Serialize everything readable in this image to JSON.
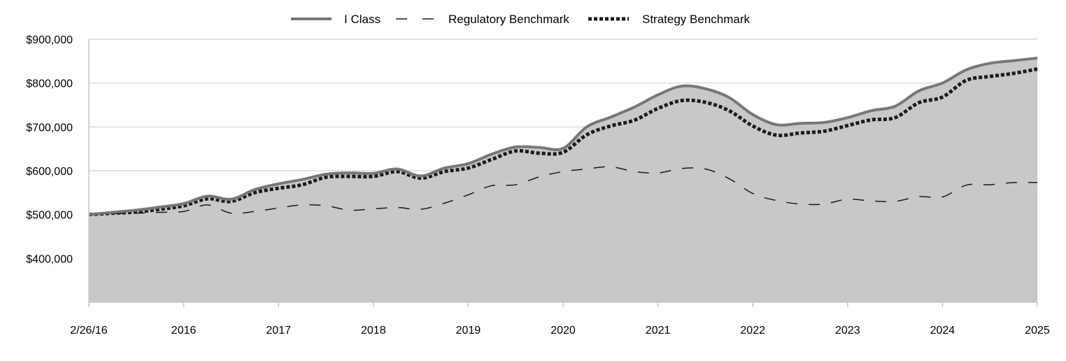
{
  "chart_data": {
    "type": "area",
    "x": [
      "2/26/16",
      "",
      "",
      "",
      "2016",
      "",
      "",
      "",
      "2017",
      "",
      "",
      "",
      "2018",
      "",
      "",
      "",
      "2019",
      "",
      "",
      "",
      "2020",
      "",
      "",
      "",
      "2021",
      "",
      "",
      "",
      "2022",
      "",
      "",
      "",
      "2023",
      "",
      "",
      "",
      "2024",
      "",
      "",
      "",
      "2025"
    ],
    "xticks": [
      "2/26/16",
      "2016",
      "2017",
      "2018",
      "2019",
      "2020",
      "2021",
      "2022",
      "2023",
      "2024",
      "2025"
    ],
    "ylim": [
      300000,
      900000
    ],
    "yticks": [
      400000,
      500000,
      600000,
      700000,
      800000,
      900000
    ],
    "ytick_labels": [
      "$400,000",
      "$500,000",
      "$600,000",
      "$700,000",
      "$800,000",
      "$900,000"
    ],
    "grid": "horizontal",
    "legend_placement": "top-center",
    "legend": {
      "i_class": "I Class",
      "regulatory": "Regulatory Benchmark",
      "strategy": "Strategy Benchmark"
    },
    "series": [
      {
        "name": "I Class",
        "style": "solid-area",
        "color": "#777777",
        "fill": "#c8c8c8",
        "values": [
          500000,
          505000,
          510000,
          517000,
          525000,
          542000,
          535000,
          557000,
          570000,
          580000,
          592000,
          595000,
          594000,
          604000,
          588000,
          606000,
          616000,
          638000,
          654000,
          653000,
          651000,
          700000,
          722000,
          745000,
          773000,
          793000,
          787000,
          767000,
          728000,
          705000,
          708000,
          710000,
          721000,
          737000,
          747000,
          782000,
          800000,
          830000,
          845000,
          851000,
          857000
        ]
      },
      {
        "name": "Regulatory Benchmark",
        "style": "dashed",
        "color": "#1a1a1a",
        "values": [
          500000,
          502000,
          503000,
          505000,
          507000,
          522000,
          503000,
          507000,
          515000,
          522000,
          520000,
          510000,
          513000,
          516000,
          512000,
          526000,
          545000,
          566000,
          568000,
          586000,
          598000,
          604000,
          609000,
          598000,
          595000,
          605000,
          604000,
          582000,
          548000,
          532000,
          524000,
          524000,
          535000,
          531000,
          530000,
          541000,
          540000,
          567000,
          568000,
          573000,
          573000
        ]
      },
      {
        "name": "Strategy Benchmark",
        "style": "dotted",
        "color": "#1a1a1a",
        "values": [
          500000,
          503000,
          506000,
          512000,
          520000,
          536000,
          530000,
          550000,
          560000,
          568000,
          585000,
          587000,
          587000,
          598000,
          583000,
          598000,
          606000,
          626000,
          645000,
          640000,
          642000,
          682000,
          702000,
          715000,
          742000,
          760000,
          756000,
          737000,
          702000,
          681000,
          686000,
          690000,
          703000,
          716000,
          721000,
          755000,
          768000,
          806000,
          815000,
          822000,
          832000
        ]
      }
    ]
  }
}
